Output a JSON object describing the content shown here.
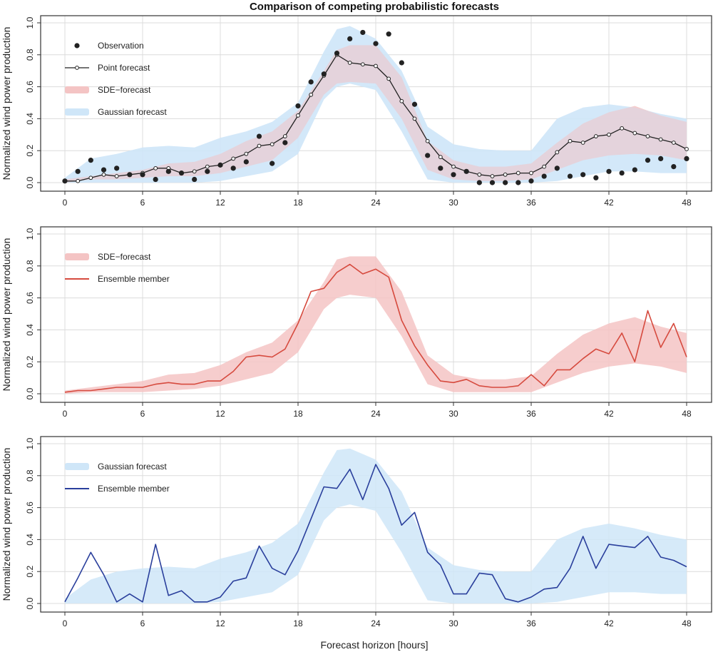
{
  "figure": {
    "title": "Comparison of competing probabilistic forecasts",
    "xlabel": "Forecast horizon [hours]"
  },
  "colors": {
    "sde_band": "#f4c4c4",
    "gauss_band": "#cfe6f8",
    "red_line": "#d64a3e",
    "blue_line": "#2a3f9c",
    "point_line": "#222222",
    "obs_dot": "#222222"
  },
  "chart_data": [
    {
      "type": "line",
      "ylabel": "Normalized wind power production",
      "xlim": [
        0,
        48
      ],
      "ylim": [
        0,
        1
      ],
      "xticks": [
        0,
        6,
        12,
        18,
        24,
        30,
        36,
        42,
        48
      ],
      "yticks": [
        0.0,
        0.2,
        0.4,
        0.6,
        0.8,
        1.0
      ],
      "ytick_labels": [
        "0.0",
        "0.2",
        "0.4",
        "0.6",
        "0.8",
        "1.0"
      ],
      "legend": [
        "Observation",
        "Point forecast",
        "SDE−forecast",
        "Gaussian forecast"
      ],
      "grid": true,
      "legend_position": "top-left",
      "gaussian_band": {
        "x": [
          0,
          2,
          4,
          6,
          8,
          10,
          12,
          14,
          16,
          18,
          20,
          21,
          22,
          24,
          26,
          28,
          30,
          32,
          34,
          36,
          38,
          40,
          42,
          44,
          46,
          48
        ],
        "lower": [
          0.0,
          0.0,
          0.0,
          0.0,
          0.0,
          0.0,
          0.01,
          0.04,
          0.07,
          0.18,
          0.52,
          0.6,
          0.62,
          0.58,
          0.32,
          0.02,
          0.0,
          0.0,
          0.0,
          0.0,
          0.01,
          0.04,
          0.07,
          0.07,
          0.06,
          0.06
        ],
        "upper": [
          0.03,
          0.15,
          0.18,
          0.22,
          0.23,
          0.22,
          0.28,
          0.32,
          0.38,
          0.5,
          0.82,
          0.96,
          0.98,
          0.9,
          0.7,
          0.35,
          0.24,
          0.21,
          0.2,
          0.2,
          0.4,
          0.47,
          0.49,
          0.47,
          0.43,
          0.4
        ]
      },
      "sde_band": {
        "x": [
          0,
          2,
          4,
          6,
          8,
          10,
          12,
          14,
          16,
          18,
          20,
          21,
          22,
          24,
          26,
          28,
          30,
          32,
          34,
          36,
          38,
          40,
          42,
          44,
          46,
          48
        ],
        "lower": [
          0.0,
          0.02,
          0.02,
          0.03,
          0.04,
          0.04,
          0.06,
          0.1,
          0.14,
          0.28,
          0.55,
          0.62,
          0.63,
          0.62,
          0.4,
          0.08,
          0.02,
          0.01,
          0.01,
          0.02,
          0.08,
          0.14,
          0.17,
          0.18,
          0.17,
          0.14
        ],
        "upper": [
          0.02,
          0.04,
          0.06,
          0.08,
          0.12,
          0.13,
          0.18,
          0.26,
          0.32,
          0.45,
          0.7,
          0.83,
          0.86,
          0.86,
          0.66,
          0.26,
          0.14,
          0.1,
          0.1,
          0.12,
          0.25,
          0.37,
          0.44,
          0.48,
          0.42,
          0.38
        ]
      },
      "point_forecast": {
        "x": [
          0,
          1,
          2,
          3,
          4,
          5,
          6,
          7,
          8,
          9,
          10,
          11,
          12,
          13,
          14,
          15,
          16,
          17,
          18,
          19,
          20,
          21,
          22,
          23,
          24,
          25,
          26,
          27,
          28,
          29,
          30,
          31,
          32,
          33,
          34,
          35,
          36,
          37,
          38,
          39,
          40,
          41,
          42,
          43,
          44,
          45,
          46,
          47,
          48
        ],
        "y": [
          0.01,
          0.01,
          0.03,
          0.05,
          0.04,
          0.05,
          0.06,
          0.09,
          0.09,
          0.06,
          0.07,
          0.1,
          0.11,
          0.15,
          0.18,
          0.23,
          0.24,
          0.29,
          0.42,
          0.55,
          0.67,
          0.8,
          0.75,
          0.74,
          0.73,
          0.65,
          0.51,
          0.4,
          0.26,
          0.16,
          0.1,
          0.07,
          0.05,
          0.04,
          0.05,
          0.06,
          0.06,
          0.1,
          0.19,
          0.26,
          0.25,
          0.29,
          0.3,
          0.34,
          0.31,
          0.29,
          0.27,
          0.25,
          0.21
        ]
      },
      "observations": {
        "x": [
          0,
          1,
          2,
          3,
          4,
          5,
          6,
          7,
          8,
          9,
          10,
          11,
          12,
          13,
          14,
          15,
          16,
          17,
          18,
          19,
          20,
          21,
          22,
          23,
          24,
          25,
          26,
          27,
          28,
          29,
          30,
          31,
          32,
          33,
          34,
          35,
          36,
          37,
          38,
          39,
          40,
          41,
          42,
          43,
          44,
          45,
          46,
          47,
          48
        ],
        "y": [
          0.01,
          0.07,
          0.14,
          0.08,
          0.09,
          0.05,
          0.05,
          0.02,
          0.07,
          0.06,
          0.02,
          0.07,
          0.11,
          0.09,
          0.13,
          0.29,
          0.12,
          0.25,
          0.48,
          0.63,
          0.68,
          0.81,
          0.9,
          0.94,
          0.87,
          0.93,
          0.75,
          0.49,
          0.17,
          0.09,
          0.05,
          0.07,
          0.0,
          0.0,
          0.0,
          0.0,
          0.01,
          0.04,
          0.09,
          0.04,
          0.05,
          0.03,
          0.07,
          0.06,
          0.08,
          0.14,
          0.15,
          0.1,
          0.15
        ]
      }
    },
    {
      "type": "line",
      "ylabel": "Normalized wind power production",
      "xlim": [
        0,
        48
      ],
      "ylim": [
        0,
        1
      ],
      "xticks": [
        0,
        6,
        12,
        18,
        24,
        30,
        36,
        42,
        48
      ],
      "yticks": [
        0.0,
        0.2,
        0.4,
        0.6,
        0.8,
        1.0
      ],
      "ytick_labels": [
        "0.0",
        "0.2",
        "0.4",
        "0.6",
        "0.8",
        "1.0"
      ],
      "legend": [
        "SDE−forecast",
        "Ensemble member"
      ],
      "grid": true,
      "legend_position": "top-left",
      "sde_band": {
        "x": [
          0,
          2,
          4,
          6,
          8,
          10,
          12,
          14,
          16,
          18,
          20,
          21,
          22,
          24,
          26,
          28,
          30,
          32,
          34,
          36,
          38,
          40,
          42,
          44,
          46,
          48
        ],
        "lower": [
          0.0,
          0.01,
          0.01,
          0.01,
          0.02,
          0.03,
          0.05,
          0.09,
          0.13,
          0.26,
          0.53,
          0.6,
          0.62,
          0.6,
          0.36,
          0.06,
          0.01,
          0.01,
          0.01,
          0.01,
          0.07,
          0.13,
          0.17,
          0.19,
          0.17,
          0.13
        ],
        "upper": [
          0.02,
          0.04,
          0.06,
          0.08,
          0.12,
          0.13,
          0.18,
          0.26,
          0.32,
          0.46,
          0.7,
          0.84,
          0.86,
          0.86,
          0.64,
          0.24,
          0.12,
          0.09,
          0.09,
          0.11,
          0.25,
          0.37,
          0.44,
          0.48,
          0.42,
          0.38
        ]
      },
      "ensemble_member": {
        "x": [
          0,
          1,
          2,
          3,
          4,
          5,
          6,
          7,
          8,
          9,
          10,
          11,
          12,
          13,
          14,
          15,
          16,
          17,
          18,
          19,
          20,
          21,
          22,
          23,
          24,
          25,
          26,
          27,
          28,
          29,
          30,
          31,
          32,
          33,
          34,
          35,
          36,
          37,
          38,
          39,
          40,
          41,
          42,
          43,
          44,
          45,
          46,
          47,
          48
        ],
        "y": [
          0.01,
          0.02,
          0.02,
          0.03,
          0.04,
          0.04,
          0.04,
          0.06,
          0.07,
          0.06,
          0.06,
          0.08,
          0.08,
          0.14,
          0.23,
          0.24,
          0.23,
          0.28,
          0.44,
          0.64,
          0.66,
          0.76,
          0.81,
          0.75,
          0.78,
          0.73,
          0.46,
          0.3,
          0.18,
          0.08,
          0.07,
          0.09,
          0.05,
          0.04,
          0.04,
          0.05,
          0.12,
          0.05,
          0.15,
          0.15,
          0.22,
          0.28,
          0.25,
          0.38,
          0.2,
          0.52,
          0.29,
          0.44,
          0.23
        ]
      }
    },
    {
      "type": "line",
      "ylabel": "Normalized wind power production",
      "xlabel": "Forecast horizon [hours]",
      "xlim": [
        0,
        48
      ],
      "ylim": [
        0,
        1
      ],
      "xticks": [
        0,
        6,
        12,
        18,
        24,
        30,
        36,
        42,
        48
      ],
      "yticks": [
        0.0,
        0.2,
        0.4,
        0.6,
        0.8,
        1.0
      ],
      "ytick_labels": [
        "0.0",
        "0.2",
        "0.4",
        "0.6",
        "0.8",
        "1.0"
      ],
      "legend": [
        "Gaussian forecast",
        "Ensemble member"
      ],
      "grid": true,
      "legend_position": "top-left",
      "gaussian_band": {
        "x": [
          0,
          2,
          4,
          6,
          8,
          10,
          12,
          14,
          16,
          18,
          20,
          21,
          22,
          24,
          26,
          28,
          30,
          32,
          34,
          36,
          38,
          40,
          42,
          44,
          46,
          48
        ],
        "lower": [
          0.0,
          0.0,
          0.0,
          0.0,
          0.0,
          0.0,
          0.01,
          0.04,
          0.07,
          0.18,
          0.52,
          0.6,
          0.62,
          0.58,
          0.32,
          0.02,
          0.0,
          0.0,
          0.0,
          0.0,
          0.01,
          0.04,
          0.07,
          0.07,
          0.06,
          0.06
        ],
        "upper": [
          0.03,
          0.15,
          0.2,
          0.22,
          0.23,
          0.22,
          0.28,
          0.32,
          0.38,
          0.5,
          0.82,
          0.96,
          0.97,
          0.9,
          0.7,
          0.35,
          0.24,
          0.21,
          0.2,
          0.2,
          0.4,
          0.47,
          0.5,
          0.47,
          0.43,
          0.4
        ]
      },
      "ensemble_member": {
        "x": [
          0,
          1,
          2,
          3,
          4,
          5,
          6,
          7,
          8,
          9,
          10,
          11,
          12,
          13,
          14,
          15,
          16,
          17,
          18,
          19,
          20,
          21,
          22,
          23,
          24,
          25,
          26,
          27,
          28,
          29,
          30,
          31,
          32,
          33,
          34,
          35,
          36,
          37,
          38,
          39,
          40,
          41,
          42,
          43,
          44,
          45,
          46,
          47,
          48
        ],
        "y": [
          0.01,
          0.16,
          0.32,
          0.18,
          0.01,
          0.06,
          0.01,
          0.37,
          0.05,
          0.08,
          0.01,
          0.01,
          0.04,
          0.14,
          0.16,
          0.36,
          0.22,
          0.18,
          0.33,
          0.53,
          0.73,
          0.72,
          0.84,
          0.65,
          0.87,
          0.72,
          0.49,
          0.57,
          0.32,
          0.24,
          0.06,
          0.06,
          0.19,
          0.18,
          0.03,
          0.01,
          0.04,
          0.09,
          0.1,
          0.22,
          0.42,
          0.22,
          0.37,
          0.36,
          0.35,
          0.42,
          0.29,
          0.27,
          0.23
        ]
      }
    }
  ]
}
